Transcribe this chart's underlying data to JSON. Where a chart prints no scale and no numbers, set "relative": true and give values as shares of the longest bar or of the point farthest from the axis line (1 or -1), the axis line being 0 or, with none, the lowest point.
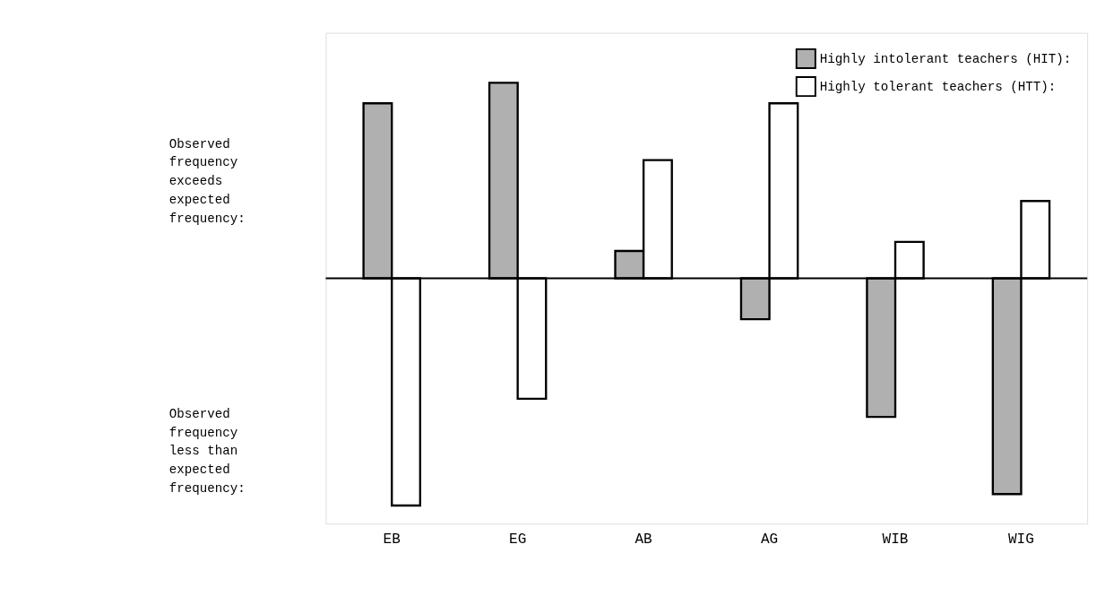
{
  "chart_data": {
    "type": "bar",
    "relative": true,
    "categories": [
      "EB",
      "EG",
      "AB",
      "AG",
      "WIB",
      "WIG"
    ],
    "series": [
      {
        "name": "Highly intolerant teachers (HIT):",
        "color": "#b0b0b0",
        "values": [
          0.77,
          0.86,
          0.12,
          -0.18,
          -0.61,
          -0.95
        ]
      },
      {
        "name": "Highly tolerant teachers (HTT):",
        "color": "#ffffff",
        "values": [
          -1,
          -0.53,
          0.52,
          0.77,
          0.16,
          0.34
        ]
      }
    ],
    "legend": "top right",
    "grid": false,
    "annotations": [
      "Observed frequency exceeds expected frequency:",
      "Observed frequency less than expected frequency:"
    ]
  }
}
